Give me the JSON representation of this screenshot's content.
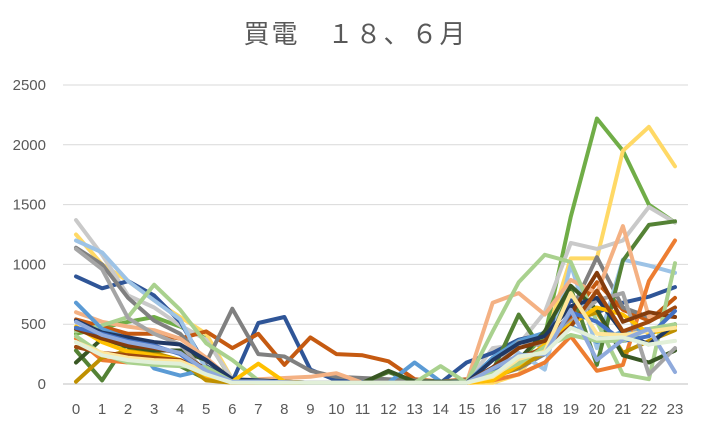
{
  "chart_data": {
    "type": "line",
    "title": "買電　１８、６月",
    "xlabel": "",
    "ylabel": "",
    "x": [
      0,
      1,
      2,
      3,
      4,
      5,
      6,
      7,
      8,
      9,
      10,
      11,
      12,
      13,
      14,
      15,
      16,
      17,
      18,
      19,
      20,
      21,
      22,
      23
    ],
    "ylim": [
      0,
      2500
    ],
    "yticks": [
      0,
      500,
      1000,
      1500,
      2000,
      2500
    ],
    "grid": true,
    "legend": "none",
    "series": [
      {
        "color": "#70ad47",
        "values": [
          420,
          470,
          520,
          560,
          480,
          380,
          30,
          20,
          15,
          10,
          10,
          10,
          10,
          10,
          10,
          10,
          60,
          200,
          400,
          1400,
          2220,
          1950,
          1500,
          1350
        ]
      },
      {
        "color": "#ffd966",
        "values": [
          1250,
          1000,
          860,
          700,
          560,
          420,
          40,
          20,
          15,
          10,
          10,
          10,
          10,
          10,
          10,
          10,
          10,
          80,
          350,
          1050,
          1050,
          1950,
          2150,
          1820
        ]
      },
      {
        "color": "#c9c9c9",
        "values": [
          1370,
          1080,
          740,
          640,
          490,
          370,
          40,
          20,
          15,
          10,
          10,
          10,
          10,
          10,
          10,
          10,
          300,
          330,
          600,
          1180,
          1130,
          1200,
          1480,
          1350
        ]
      },
      {
        "color": "#2f5597",
        "values": [
          900,
          800,
          860,
          740,
          520,
          150,
          20,
          510,
          560,
          120,
          30,
          20,
          20,
          10,
          10,
          180,
          260,
          370,
          420,
          700,
          600,
          680,
          730,
          810
        ]
      },
      {
        "color": "#c55a11",
        "values": [
          540,
          480,
          420,
          420,
          380,
          440,
          300,
          420,
          160,
          390,
          250,
          240,
          190,
          40,
          20,
          40,
          100,
          200,
          300,
          560,
          850,
          620,
          530,
          720
        ]
      },
      {
        "color": "#808080",
        "values": [
          1140,
          1000,
          720,
          530,
          420,
          180,
          630,
          250,
          230,
          110,
          60,
          50,
          40,
          30,
          20,
          30,
          60,
          130,
          250,
          600,
          1060,
          640,
          560,
          560
        ]
      },
      {
        "color": "#9dc3e6",
        "values": [
          1200,
          1100,
          860,
          700,
          540,
          120,
          20,
          20,
          15,
          10,
          10,
          10,
          10,
          10,
          10,
          10,
          40,
          260,
          120,
          1000,
          300,
          1040,
          990,
          930
        ]
      },
      {
        "color": "#548235",
        "values": [
          280,
          30,
          360,
          240,
          150,
          40,
          10,
          10,
          10,
          10,
          10,
          10,
          100,
          20,
          20,
          20,
          110,
          580,
          250,
          800,
          160,
          1030,
          1330,
          1360
        ]
      },
      {
        "color": "#f4b183",
        "values": [
          600,
          520,
          480,
          450,
          380,
          220,
          30,
          40,
          50,
          60,
          90,
          10,
          10,
          10,
          10,
          10,
          680,
          760,
          580,
          870,
          760,
          1320,
          560,
          560
        ]
      },
      {
        "color": "#a9d18e",
        "values": [
          440,
          490,
          560,
          830,
          620,
          340,
          200,
          30,
          20,
          10,
          10,
          10,
          10,
          10,
          10,
          10,
          440,
          850,
          1080,
          1020,
          520,
          80,
          40,
          1010
        ]
      },
      {
        "color": "#5b9bd5",
        "values": [
          680,
          460,
          380,
          130,
          70,
          120,
          30,
          20,
          15,
          10,
          10,
          10,
          10,
          180,
          20,
          10,
          220,
          360,
          430,
          490,
          350,
          440,
          460,
          480
        ]
      },
      {
        "color": "#ed7d31",
        "values": [
          380,
          200,
          180,
          180,
          180,
          60,
          10,
          10,
          10,
          10,
          10,
          10,
          10,
          10,
          10,
          10,
          30,
          80,
          180,
          400,
          110,
          160,
          860,
          1200
        ]
      },
      {
        "color": "#bf9000",
        "values": [
          20,
          220,
          280,
          260,
          200,
          30,
          10,
          20,
          10,
          10,
          10,
          10,
          10,
          10,
          10,
          10,
          50,
          140,
          260,
          520,
          600,
          260,
          360,
          450
        ]
      },
      {
        "color": "#385723",
        "values": [
          180,
          380,
          310,
          280,
          280,
          200,
          30,
          20,
          15,
          10,
          10,
          10,
          110,
          20,
          20,
          10,
          60,
          200,
          440,
          820,
          620,
          240,
          180,
          280
        ]
      },
      {
        "color": "#a5a5a5",
        "values": [
          1130,
          960,
          550,
          420,
          330,
          90,
          30,
          30,
          20,
          10,
          10,
          10,
          10,
          10,
          10,
          10,
          120,
          350,
          320,
          520,
          700,
          760,
          80,
          300
        ]
      },
      {
        "color": "#203864",
        "values": [
          530,
          430,
          390,
          350,
          330,
          200,
          40,
          30,
          20,
          10,
          10,
          10,
          10,
          10,
          10,
          10,
          200,
          340,
          400,
          650,
          720,
          430,
          330,
          500
        ]
      },
      {
        "color": "#ffc000",
        "values": [
          480,
          350,
          270,
          240,
          200,
          70,
          20,
          170,
          20,
          10,
          10,
          10,
          10,
          10,
          10,
          10,
          30,
          160,
          330,
          500,
          640,
          580,
          420,
          480
        ]
      },
      {
        "color": "#843c0c",
        "values": [
          460,
          380,
          320,
          300,
          260,
          120,
          20,
          20,
          15,
          10,
          10,
          10,
          10,
          10,
          10,
          10,
          140,
          300,
          360,
          580,
          930,
          520,
          600,
          560
        ]
      },
      {
        "color": "#9e480e",
        "values": [
          310,
          260,
          240,
          220,
          200,
          100,
          20,
          20,
          15,
          10,
          10,
          10,
          10,
          10,
          10,
          10,
          80,
          220,
          300,
          480,
          780,
          440,
          520,
          640
        ]
      },
      {
        "color": "#4472c4",
        "values": [
          470,
          420,
          360,
          320,
          250,
          90,
          20,
          20,
          15,
          10,
          10,
          10,
          10,
          10,
          10,
          10,
          100,
          200,
          280,
          600,
          520,
          360,
          400,
          610
        ]
      },
      {
        "color": "#a9d18e",
        "values": [
          400,
          250,
          180,
          160,
          150,
          140,
          20,
          10,
          10,
          10,
          10,
          10,
          10,
          10,
          150,
          10,
          90,
          170,
          310,
          410,
          360,
          360,
          460,
          500
        ]
      },
      {
        "color": "#ffe699",
        "values": [
          350,
          260,
          220,
          200,
          190,
          100,
          20,
          20,
          15,
          10,
          10,
          10,
          10,
          10,
          10,
          10,
          60,
          210,
          270,
          760,
          420,
          410,
          440,
          470
        ]
      },
      {
        "color": "#8faadc",
        "values": [
          520,
          410,
          350,
          310,
          260,
          110,
          20,
          20,
          15,
          10,
          10,
          10,
          10,
          10,
          10,
          10,
          130,
          240,
          250,
          620,
          200,
          370,
          460,
          100
        ]
      },
      {
        "color": "#e2f0d9",
        "values": [
          350,
          240,
          200,
          180,
          170,
          80,
          10,
          10,
          10,
          10,
          10,
          10,
          10,
          10,
          10,
          10,
          70,
          230,
          260,
          470,
          380,
          390,
          330,
          360
        ]
      }
    ]
  }
}
